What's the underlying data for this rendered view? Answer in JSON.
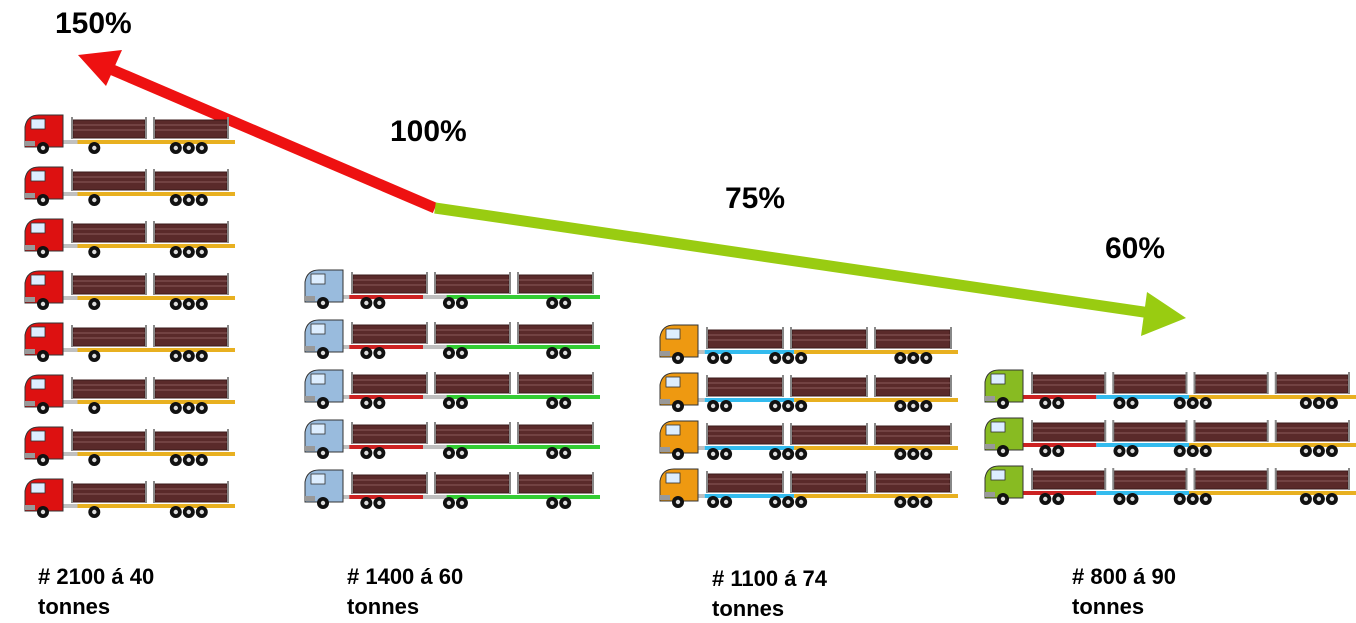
{
  "percent_labels": [
    "150%",
    "100%",
    "75%",
    "60%"
  ],
  "groups": [
    {
      "label": [
        "# 2100 á 40",
        "tonnes"
      ]
    },
    {
      "label": [
        "# 1400 á 60",
        "tonnes"
      ]
    },
    {
      "label": [
        "# 1100 á 74",
        "tonnes"
      ]
    },
    {
      "label": [
        "# 800 á 90",
        "tonnes"
      ]
    }
  ]
}
